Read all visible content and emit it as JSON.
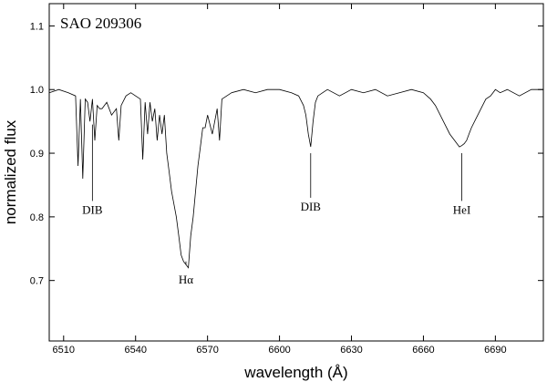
{
  "chart_data": {
    "type": "line",
    "title": "SAO 209306",
    "xlabel": "wavelength (Å)",
    "ylabel": "normalized flux",
    "xlim": [
      6504,
      6710
    ],
    "ylim": [
      0.605,
      1.135
    ],
    "x_ticks": [
      6510,
      6540,
      6570,
      6600,
      6630,
      6660,
      6690
    ],
    "y_ticks": [
      0.7,
      0.8,
      0.9,
      1.0,
      1.1
    ],
    "x_tick_labels": [
      "6510",
      "6540",
      "6570",
      "6600",
      "6630",
      "6660",
      "6690"
    ],
    "y_tick_labels": [
      "0.7",
      "0.8",
      "0.9",
      "1.0",
      "1.1"
    ],
    "grid": false,
    "series": [
      {
        "x": [
          6504,
          6508,
          6512,
          6515,
          6516,
          6517,
          6518,
          6519,
          6520,
          6521,
          6522,
          6523,
          6524,
          6525,
          6526,
          6528,
          6530,
          6532,
          6533,
          6534,
          6536,
          6538,
          6540,
          6542,
          6543,
          6544,
          6545,
          6546,
          6547,
          6548,
          6549,
          6550,
          6551,
          6552,
          6553,
          6554,
          6555,
          6556,
          6557,
          6558,
          6559,
          6560,
          6561,
          6562,
          6563,
          6564,
          6565,
          6566,
          6567,
          6568,
          6569,
          6570,
          6572,
          6574,
          6575,
          6576,
          6578,
          6580,
          6585,
          6590,
          6595,
          6600,
          6605,
          6608,
          6610,
          6611,
          6612,
          6613,
          6614,
          6615,
          6616,
          6618,
          6620,
          6625,
          6630,
          6635,
          6640,
          6645,
          6650,
          6655,
          6660,
          6663,
          6665,
          6667,
          6669,
          6671,
          6673,
          6675,
          6676,
          6677,
          6678,
          6679,
          6680,
          6682,
          6684,
          6686,
          6688,
          6690,
          6692,
          6695,
          6700,
          6705,
          6710
        ],
        "y": [
          0.995,
          1.0,
          0.995,
          0.99,
          0.88,
          0.985,
          0.86,
          0.985,
          0.98,
          0.95,
          0.985,
          0.92,
          0.975,
          0.97,
          0.97,
          0.98,
          0.96,
          0.97,
          0.92,
          0.975,
          0.99,
          0.995,
          0.99,
          0.985,
          0.89,
          0.98,
          0.93,
          0.98,
          0.95,
          0.97,
          0.92,
          0.96,
          0.93,
          0.96,
          0.9,
          0.87,
          0.84,
          0.82,
          0.8,
          0.77,
          0.74,
          0.73,
          0.725,
          0.72,
          0.77,
          0.8,
          0.84,
          0.88,
          0.91,
          0.94,
          0.94,
          0.96,
          0.93,
          0.97,
          0.92,
          0.985,
          0.99,
          0.995,
          1.0,
          0.995,
          1.0,
          1.0,
          0.995,
          0.99,
          0.975,
          0.96,
          0.93,
          0.91,
          0.95,
          0.98,
          0.99,
          0.995,
          1.0,
          0.99,
          1.0,
          0.995,
          1.0,
          0.99,
          0.995,
          1.0,
          0.995,
          0.985,
          0.975,
          0.96,
          0.945,
          0.93,
          0.92,
          0.91,
          0.912,
          0.915,
          0.92,
          0.93,
          0.94,
          0.955,
          0.97,
          0.985,
          0.99,
          1.0,
          0.995,
          1.0,
          0.99,
          1.0,
          1.0
        ]
      }
    ],
    "annotations": [
      {
        "text": "DIB",
        "x": 6522,
        "line_top": 0.945,
        "line_bottom": 0.825,
        "label_y": 0.805
      },
      {
        "text": "Hα",
        "x": 6561,
        "line_top": 0.73,
        "line_bottom": 0.725,
        "label_y": 0.695
      },
      {
        "text": "DIB",
        "x": 6613,
        "line_top": 0.9,
        "line_bottom": 0.83,
        "label_y": 0.81
      },
      {
        "text": "HeI",
        "x": 6676,
        "line_top": 0.9,
        "line_bottom": 0.825,
        "label_y": 0.805
      }
    ]
  }
}
